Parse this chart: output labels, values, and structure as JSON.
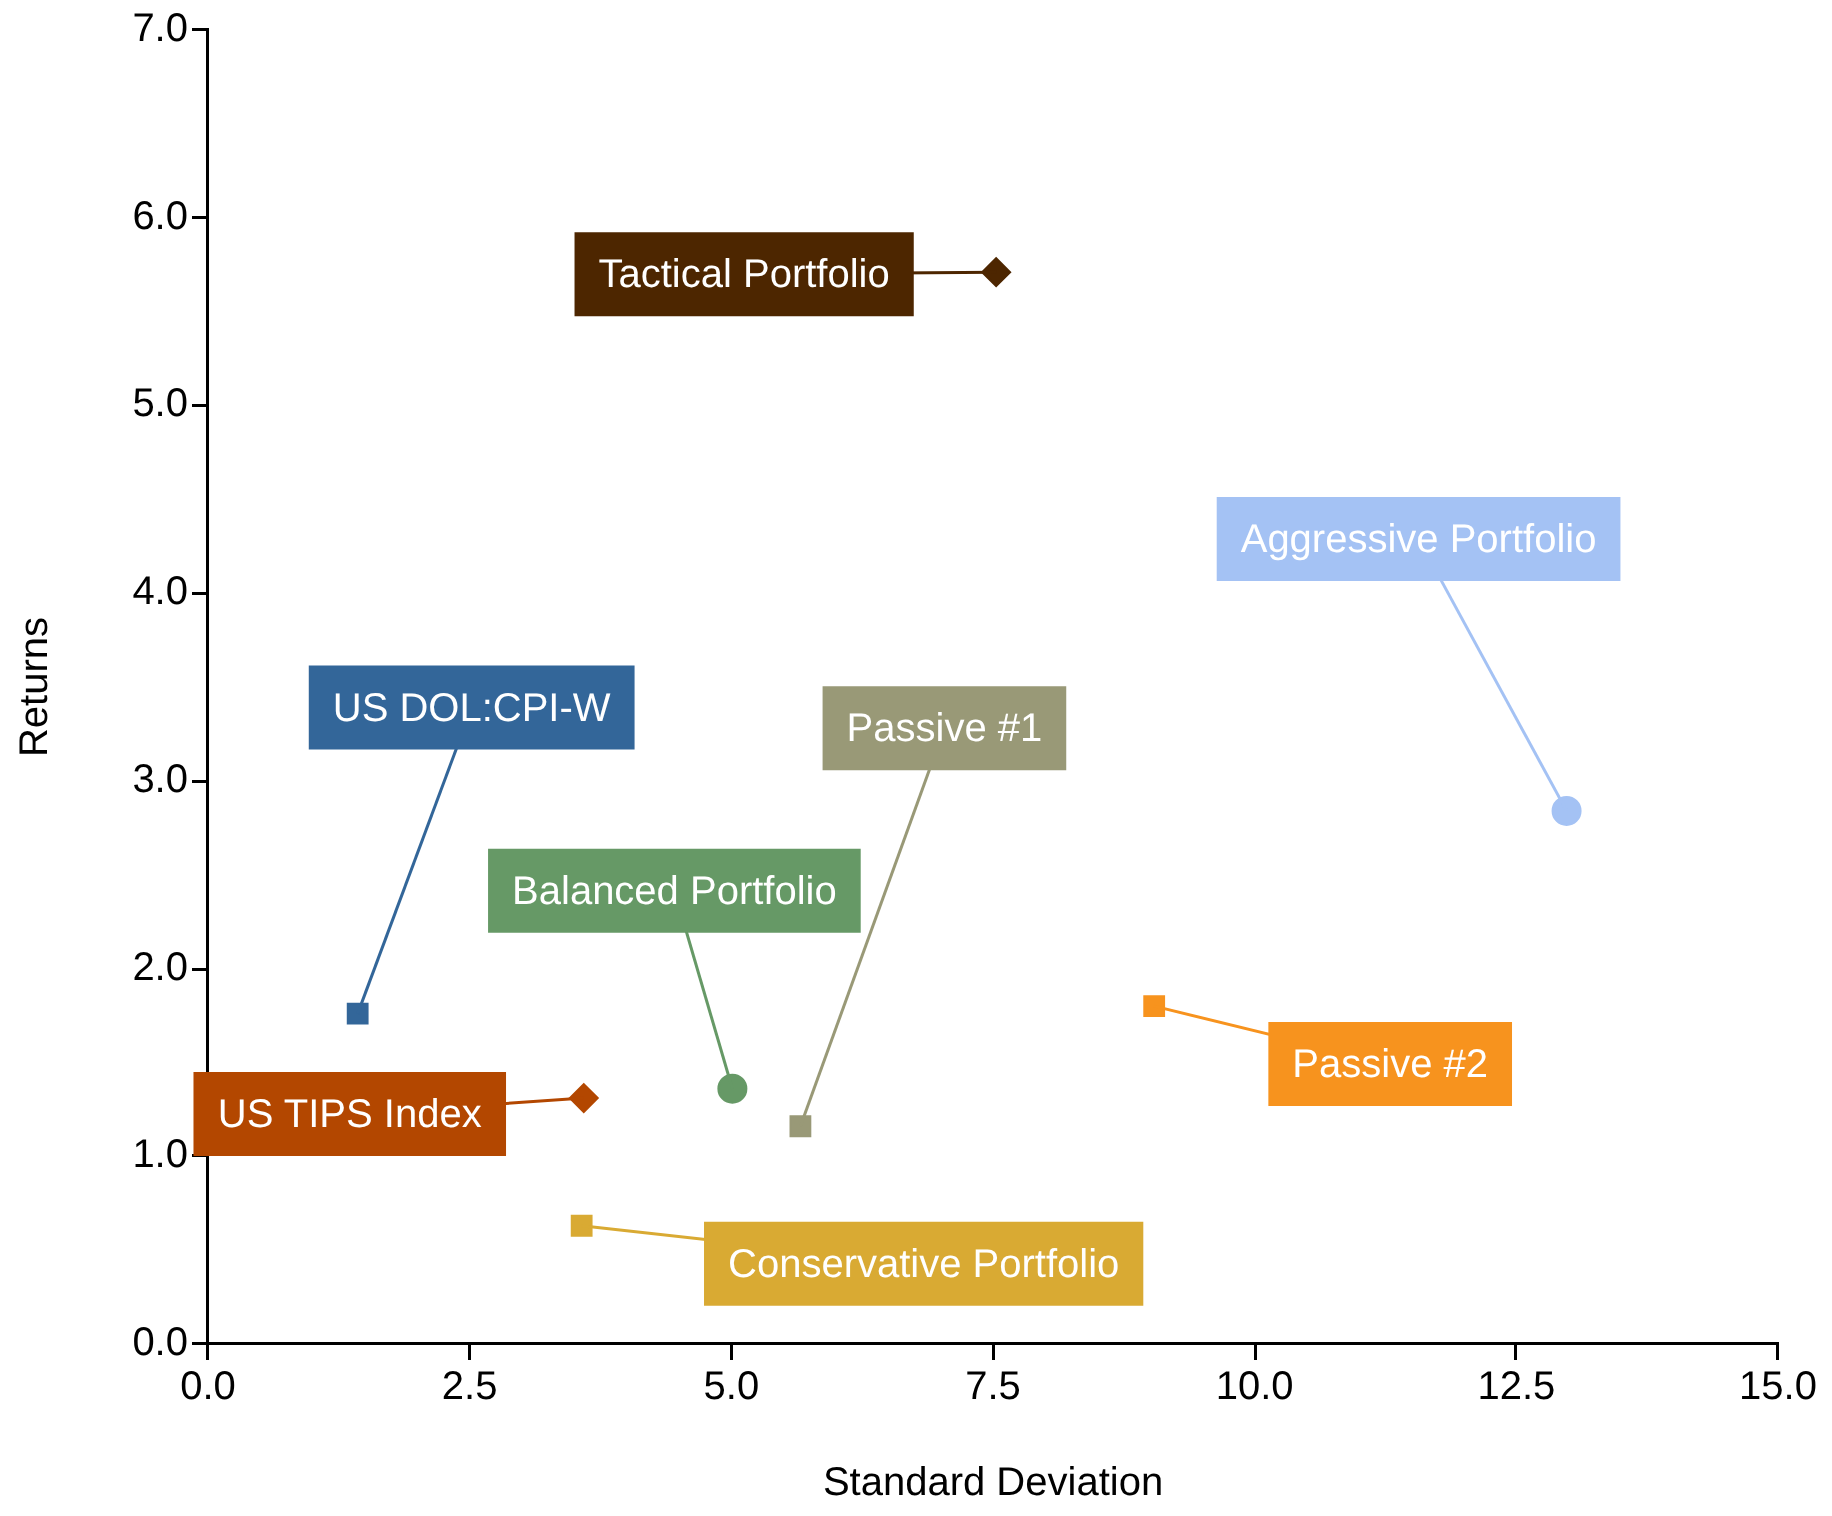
{
  "chart_data": {
    "type": "scatter",
    "xlabel": "Standard Deviation",
    "ylabel": "Returns",
    "xlim": [
      0,
      15
    ],
    "ylim": [
      0,
      7
    ],
    "xticks": [
      {
        "value": 0,
        "label": "0.0"
      },
      {
        "value": 2.5,
        "label": "2.5"
      },
      {
        "value": 5,
        "label": "5.0"
      },
      {
        "value": 7.5,
        "label": "7.5"
      },
      {
        "value": 10,
        "label": "10.0"
      },
      {
        "value": 12.5,
        "label": "12.5"
      },
      {
        "value": 15,
        "label": "15.0"
      }
    ],
    "yticks": [
      {
        "value": 0,
        "label": "0.0"
      },
      {
        "value": 1,
        "label": "1.0"
      },
      {
        "value": 2,
        "label": "2.0"
      },
      {
        "value": 3,
        "label": "3.0"
      },
      {
        "value": 4,
        "label": "4.0"
      },
      {
        "value": 5,
        "label": "5.0"
      },
      {
        "value": 6,
        "label": "6.0"
      },
      {
        "value": 7,
        "label": "7.0"
      }
    ],
    "grid": false,
    "legend": false,
    "series": [
      {
        "name": "Tactical Portfolio",
        "color": "#4d2600",
        "marker": "diamond",
        "x": [
          7.53
        ],
        "values": [
          5.71
        ]
      },
      {
        "name": "Aggressive Portfolio",
        "color": "#a4c2f4",
        "marker": "circle",
        "x": [
          12.98
        ],
        "values": [
          2.84
        ]
      },
      {
        "name": "US DOL:CPI-W",
        "color": "#336699",
        "marker": "square",
        "x": [
          1.43
        ],
        "values": [
          1.76
        ]
      },
      {
        "name": "Passive #1",
        "color": "#999977",
        "marker": "square",
        "x": [
          5.66
        ],
        "values": [
          1.16
        ]
      },
      {
        "name": "Balanced Portfolio",
        "color": "#669966",
        "marker": "circle",
        "x": [
          5.01
        ],
        "values": [
          1.36
        ]
      },
      {
        "name": "Passive #2",
        "color": "#f7931e",
        "marker": "square",
        "x": [
          9.04
        ],
        "values": [
          1.8
        ]
      },
      {
        "name": "US TIPS Index",
        "color": "#b34700",
        "marker": "diamond",
        "x": [
          3.59
        ],
        "values": [
          1.31
        ]
      },
      {
        "name": "Conservative Portfolio",
        "color": "#d9aa33",
        "marker": "square",
        "x": [
          3.57
        ],
        "values": [
          0.63
        ]
      }
    ]
  }
}
